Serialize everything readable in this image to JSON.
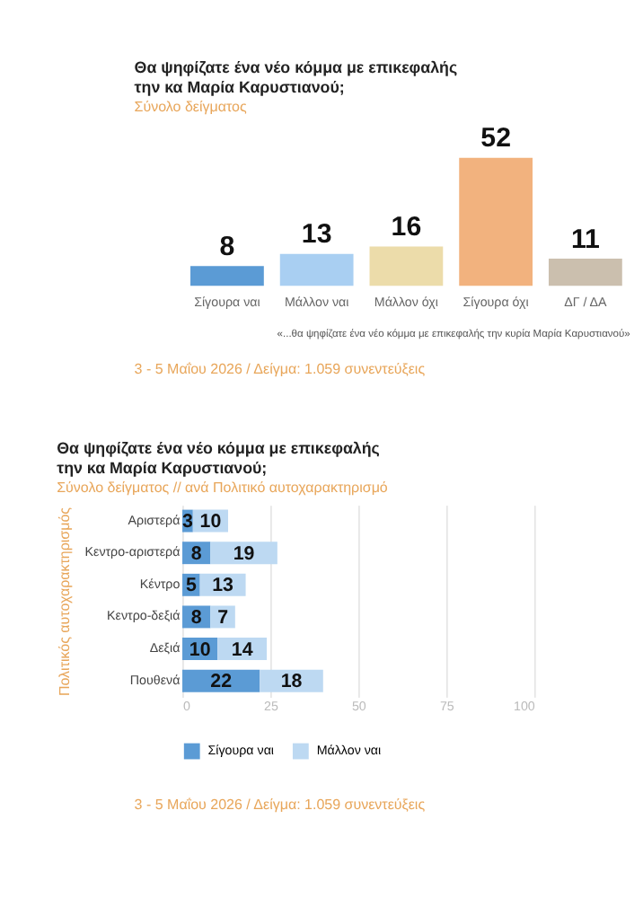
{
  "chart_data": [
    {
      "type": "bar",
      "title": "Θα ψηφίζατε ένα νέο κόμμα με επικεφαλής την κα Μαρία Καρυστιανού;",
      "subtitle": "Σύνολο δείγματος",
      "categories": [
        "Σίγουρα ναι",
        "Μάλλον ναι",
        "Μάλλον όχι",
        "Σίγουρα όχι",
        "ΔΓ / ΔΑ"
      ],
      "values": [
        8,
        13,
        16,
        52,
        11
      ],
      "colors": [
        "#5b9bd5",
        "#a9cff2",
        "#ecdcaa",
        "#f2b27e",
        "#cbbfae"
      ],
      "data_labels": true,
      "annotations": [
        "«...θα ψηφίζατε ένα νέο κόμμα με επικεφαλής την κυρία Μαρία Καρυστιανού»",
        "3 - 5 Μαΐου 2026  /  Δείγμα:  1.059 συνεντεύξεις"
      ]
    },
    {
      "type": "bar",
      "orientation": "horizontal",
      "stacked": true,
      "title": "Θα ψηφίζατε ένα νέο κόμμα με επικεφαλής την κα Μαρία Καρυστιανού;",
      "subtitle": "Σύνολο δείγματος // ανά Πολιτικό  αυτοχαρακτηρισμό",
      "ylabel": "Πολιτικός αυτοχαρακτηρισμός",
      "categories": [
        "Αριστερά",
        "Κεντρο-αριστερά",
        "Κέντρο",
        "Κεντρο-δεξιά",
        "Δεξιά",
        "Πουθενά"
      ],
      "series": [
        {
          "name": "Σίγουρα ναι",
          "color": "#5b9bd5",
          "values": [
            3,
            8,
            5,
            8,
            10,
            22
          ]
        },
        {
          "name": "Μάλλον ναι",
          "color": "#bdd9f2",
          "values": [
            10,
            19,
            13,
            7,
            14,
            18
          ]
        }
      ],
      "xlim": [
        0,
        100
      ],
      "xticks": [
        0,
        25,
        50,
        75,
        100
      ],
      "grid": "x",
      "legend": "bottom",
      "data_labels": true,
      "annotations": [
        "3 - 5 Μαΐου 2026  /  Δείγμα:  1.059 συνεντεύξεις"
      ]
    }
  ]
}
